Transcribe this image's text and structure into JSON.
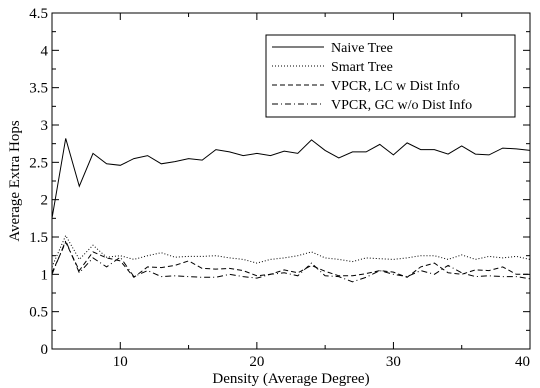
{
  "chart_data": {
    "type": "line",
    "title": "",
    "xlabel": "Density (Average Degree)",
    "ylabel": "Average Extra Hops",
    "xlim": [
      5,
      40
    ],
    "ylim": [
      0,
      4.5
    ],
    "x_ticks": [
      10,
      20,
      30,
      40
    ],
    "y_ticks": [
      0,
      0.5,
      1,
      1.5,
      2,
      2.5,
      3,
      3.5,
      4,
      4.5
    ],
    "x_tick_labels": [
      "10",
      "20",
      "30",
      "40"
    ],
    "y_tick_labels": [
      "0",
      "0.5",
      "1",
      "1.5",
      "2",
      "2.5",
      "3",
      "3.5",
      "4",
      "4.5"
    ],
    "grid": false,
    "legend_position": "top-right",
    "x": [
      5,
      6,
      7,
      8,
      9,
      10,
      11,
      12,
      13,
      14,
      15,
      16,
      17,
      18,
      19,
      20,
      21,
      22,
      23,
      24,
      25,
      26,
      27,
      28,
      29,
      30,
      31,
      32,
      33,
      34,
      35,
      36,
      37,
      38,
      39,
      40
    ],
    "series": [
      {
        "name": "Naive Tree",
        "style": "solid",
        "values": [
          1.75,
          2.82,
          2.18,
          2.62,
          2.48,
          2.46,
          2.55,
          2.59,
          2.48,
          2.51,
          2.55,
          2.53,
          2.67,
          2.64,
          2.59,
          2.62,
          2.59,
          2.65,
          2.62,
          2.8,
          2.66,
          2.56,
          2.64,
          2.64,
          2.74,
          2.6,
          2.76,
          2.67,
          2.67,
          2.61,
          2.72,
          2.61,
          2.6,
          2.69,
          2.68,
          2.66
        ]
      },
      {
        "name": "Smart Tree",
        "style": "dotted",
        "values": [
          1.1,
          1.52,
          1.2,
          1.39,
          1.23,
          1.25,
          1.2,
          1.25,
          1.29,
          1.23,
          1.24,
          1.24,
          1.25,
          1.22,
          1.2,
          1.15,
          1.2,
          1.22,
          1.25,
          1.3,
          1.22,
          1.2,
          1.17,
          1.22,
          1.21,
          1.2,
          1.22,
          1.25,
          1.25,
          1.2,
          1.26,
          1.2,
          1.24,
          1.22,
          1.24,
          1.2
        ]
      },
      {
        "name": "VPCR, LC w Dist Info",
        "style": "dashed",
        "values": [
          1.02,
          1.43,
          1.05,
          1.3,
          1.22,
          1.18,
          0.96,
          1.1,
          1.09,
          1.12,
          1.18,
          1.08,
          1.07,
          1.08,
          1.05,
          0.98,
          1.0,
          1.06,
          1.02,
          1.12,
          1.04,
          0.98,
          0.98,
          1.01,
          1.05,
          1.03,
          0.96,
          1.1,
          1.15,
          1.02,
          1.0,
          1.06,
          1.05,
          1.1,
          1.0,
          1.0
        ]
      },
      {
        "name": "VPCR, GC w/o Dist Info",
        "style": "dashdot",
        "values": [
          1.0,
          1.45,
          1.02,
          1.22,
          1.1,
          1.23,
          0.97,
          1.05,
          0.97,
          0.98,
          0.97,
          0.96,
          0.96,
          1.0,
          0.97,
          0.95,
          1.0,
          1.02,
          0.98,
          1.15,
          0.98,
          0.97,
          0.9,
          0.96,
          1.05,
          1.0,
          0.97,
          1.05,
          1.0,
          1.12,
          1.02,
          0.97,
          0.98,
          0.97,
          0.97,
          0.94
        ]
      }
    ]
  }
}
